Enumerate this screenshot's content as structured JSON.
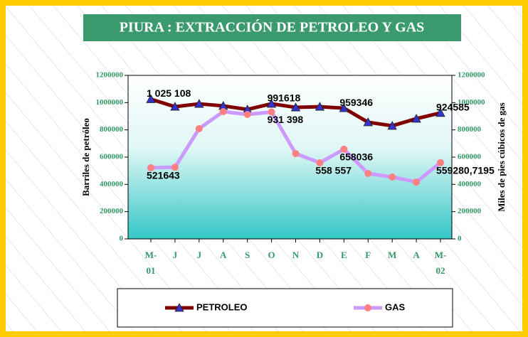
{
  "chart_data": {
    "type": "line",
    "title": "PIURA : EXTRACCIÓN DE PETROLEO Y GAS",
    "y_label": "Barriles de petróleo",
    "y2_label": "Miles de pies cúbicos de gas",
    "categories": [
      "M-01",
      "J",
      "J",
      "A",
      "S",
      "O",
      "N",
      "D",
      "E",
      "F",
      "M",
      "A",
      "M-02"
    ],
    "series": [
      {
        "name": "PETROLEO",
        "color": "#800000",
        "marker_color": "#3333cc",
        "values": [
          1025108,
          970000,
          991000,
          976000,
          950000,
          991618,
          965000,
          970000,
          959346,
          856000,
          830000,
          882000,
          924585
        ],
        "value_labels": [
          "1 025 108",
          null,
          null,
          null,
          null,
          "991618",
          null,
          null,
          "959346",
          null,
          null,
          null,
          "924585"
        ]
      },
      {
        "name": "GAS",
        "color": "#cc99ff",
        "marker_color": "#ff8080",
        "axis": "y2",
        "values": [
          521643,
          526000,
          809000,
          934000,
          913000,
          931398,
          626000,
          558557,
          658036,
          480000,
          454000,
          417000,
          559280.7195
        ],
        "value_labels": [
          "521643",
          null,
          null,
          null,
          null,
          "931 398",
          null,
          "558 557",
          "658036",
          null,
          null,
          null,
          "559280,7195"
        ]
      }
    ],
    "ylim": [
      0,
      1200000
    ],
    "yticks": [
      0,
      200000,
      400000,
      600000,
      800000,
      1000000,
      1200000
    ],
    "y2lim": [
      0,
      1200000
    ],
    "y2ticks": [
      0,
      200000,
      400000,
      600000,
      800000,
      1000000,
      1200000
    ]
  }
}
